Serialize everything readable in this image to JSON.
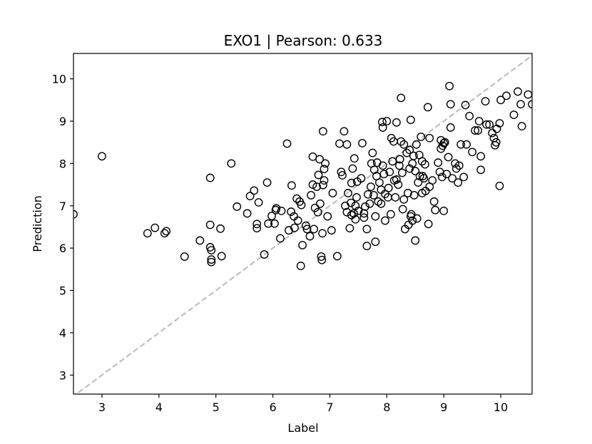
{
  "chart_data": {
    "type": "scatter",
    "title": "EXO1  |  Pearson: 0.633",
    "xlabel": "Label",
    "ylabel": "Prediction",
    "xlim": [
      2.5,
      10.55
    ],
    "ylim": [
      2.55,
      10.6
    ],
    "xticks": [
      3,
      4,
      5,
      6,
      7,
      8,
      9,
      10
    ],
    "yticks": [
      3,
      4,
      5,
      6,
      7,
      8,
      9,
      10
    ],
    "grid": false,
    "legend": "none",
    "marker": "hollow-circle",
    "marker_color": "#000000",
    "reference_line": {
      "style": "dashed",
      "color": "#bfbfbf",
      "slope": 1,
      "intercept": 0
    },
    "points": [
      [
        2.5,
        6.8
      ],
      [
        3.0,
        8.17
      ],
      [
        3.8,
        6.35
      ],
      [
        3.93,
        6.48
      ],
      [
        4.1,
        6.35
      ],
      [
        4.13,
        6.4
      ],
      [
        4.45,
        5.8
      ],
      [
        4.72,
        6.18
      ],
      [
        4.9,
        7.66
      ],
      [
        4.9,
        6.55
      ],
      [
        4.9,
        6.02
      ],
      [
        4.92,
        5.95
      ],
      [
        4.92,
        5.73
      ],
      [
        4.92,
        5.67
      ],
      [
        5.08,
        6.46
      ],
      [
        5.1,
        5.81
      ],
      [
        5.27,
        8.0
      ],
      [
        5.37,
        6.98
      ],
      [
        5.55,
        6.82
      ],
      [
        5.6,
        7.23
      ],
      [
        5.67,
        7.36
      ],
      [
        5.72,
        6.57
      ],
      [
        5.72,
        6.47
      ],
      [
        5.75,
        7.08
      ],
      [
        5.85,
        5.85
      ],
      [
        5.9,
        7.55
      ],
      [
        5.92,
        6.58
      ],
      [
        5.98,
        6.76
      ],
      [
        6.03,
        6.58
      ],
      [
        6.05,
        6.9
      ],
      [
        6.06,
        6.94
      ],
      [
        6.13,
        6.23
      ],
      [
        6.15,
        6.88
      ],
      [
        6.25,
        8.47
      ],
      [
        6.28,
        6.42
      ],
      [
        6.32,
        6.86
      ],
      [
        6.33,
        7.48
      ],
      [
        6.37,
        6.75
      ],
      [
        6.38,
        6.48
      ],
      [
        6.42,
        7.17
      ],
      [
        6.44,
        6.65
      ],
      [
        6.47,
        7.1
      ],
      [
        6.5,
        7.02
      ],
      [
        6.52,
        6.07
      ],
      [
        6.49,
        5.58
      ],
      [
        6.58,
        6.53
      ],
      [
        6.6,
        6.45
      ],
      [
        6.65,
        6.28
      ],
      [
        6.67,
        7.25
      ],
      [
        6.7,
        7.5
      ],
      [
        6.7,
        8.16
      ],
      [
        6.72,
        6.45
      ],
      [
        6.74,
        6.95
      ],
      [
        6.77,
        7.45
      ],
      [
        6.79,
        6.85
      ],
      [
        6.8,
        7.73
      ],
      [
        6.82,
        8.1
      ],
      [
        6.83,
        7.05
      ],
      [
        6.85,
        5.8
      ],
      [
        6.86,
        5.72
      ],
      [
        6.87,
        6.35
      ],
      [
        6.88,
        7.49
      ],
      [
        6.88,
        8.76
      ],
      [
        6.9,
        7.6
      ],
      [
        6.9,
        7.87
      ],
      [
        6.92,
        8.0
      ],
      [
        6.96,
        6.75
      ],
      [
        7.03,
        6.42
      ],
      [
        7.05,
        7.3
      ],
      [
        7.13,
        5.81
      ],
      [
        7.17,
        8.47
      ],
      [
        7.2,
        7.8
      ],
      [
        7.22,
        7.72
      ],
      [
        7.25,
        8.76
      ],
      [
        7.27,
        7.0
      ],
      [
        7.3,
        6.85
      ],
      [
        7.3,
        8.45
      ],
      [
        7.32,
        7.3
      ],
      [
        7.35,
        6.47
      ],
      [
        7.37,
        7.07
      ],
      [
        7.38,
        6.78
      ],
      [
        7.38,
        7.54
      ],
      [
        7.4,
        7.88
      ],
      [
        7.42,
        6.82
      ],
      [
        7.43,
        8.12
      ],
      [
        7.45,
        7.0
      ],
      [
        7.45,
        6.68
      ],
      [
        7.47,
        7.2
      ],
      [
        7.48,
        7.57
      ],
      [
        7.5,
        6.88
      ],
      [
        7.55,
        7.65
      ],
      [
        7.57,
        8.48
      ],
      [
        7.6,
        6.82
      ],
      [
        7.6,
        6.72
      ],
      [
        7.62,
        6.98
      ],
      [
        7.65,
        6.45
      ],
      [
        7.65,
        6.05
      ],
      [
        7.67,
        7.27
      ],
      [
        7.7,
        7.05
      ],
      [
        7.72,
        7.45
      ],
      [
        7.73,
        8.0
      ],
      [
        7.75,
        8.25
      ],
      [
        7.77,
        7.25
      ],
      [
        7.78,
        7.85
      ],
      [
        7.8,
        6.15
      ],
      [
        7.8,
        6.75
      ],
      [
        7.82,
        7.7
      ],
      [
        7.83,
        8.02
      ],
      [
        7.85,
        7.1
      ],
      [
        7.87,
        7.55
      ],
      [
        7.9,
        7.38
      ],
      [
        7.9,
        7.05
      ],
      [
        7.92,
        8.98
      ],
      [
        7.93,
        8.85
      ],
      [
        7.93,
        7.95
      ],
      [
        7.95,
        7.75
      ],
      [
        7.97,
        7.28
      ],
      [
        7.97,
        6.65
      ],
      [
        8.0,
        9.0
      ],
      [
        8.02,
        7.2
      ],
      [
        8.03,
        7.42
      ],
      [
        8.05,
        7.8
      ],
      [
        8.07,
        6.8
      ],
      [
        8.08,
        8.6
      ],
      [
        8.1,
        8.05
      ],
      [
        8.12,
        8.52
      ],
      [
        8.13,
        7.6
      ],
      [
        8.15,
        7.2
      ],
      [
        8.17,
        8.97
      ],
      [
        8.17,
        7.62
      ],
      [
        8.2,
        7.5
      ],
      [
        8.22,
        7.95
      ],
      [
        8.23,
        8.1
      ],
      [
        8.25,
        8.52
      ],
      [
        8.25,
        9.55
      ],
      [
        8.27,
        7.78
      ],
      [
        8.28,
        6.92
      ],
      [
        8.3,
        8.45
      ],
      [
        8.3,
        7.15
      ],
      [
        8.32,
        6.45
      ],
      [
        8.35,
        8.25
      ],
      [
        8.37,
        7.3
      ],
      [
        8.38,
        6.55
      ],
      [
        8.4,
        8.32
      ],
      [
        8.4,
        7.88
      ],
      [
        8.42,
        9.03
      ],
      [
        8.42,
        6.75
      ],
      [
        8.43,
        6.8
      ],
      [
        8.45,
        8.0
      ],
      [
        8.45,
        6.65
      ],
      [
        8.47,
        8.18
      ],
      [
        8.48,
        7.25
      ],
      [
        8.5,
        7.82
      ],
      [
        8.5,
        6.18
      ],
      [
        8.52,
        8.45
      ],
      [
        8.53,
        6.7
      ],
      [
        8.55,
        7.55
      ],
      [
        8.57,
        8.2
      ],
      [
        8.58,
        7.7
      ],
      [
        8.6,
        8.63
      ],
      [
        8.62,
        8.05
      ],
      [
        8.62,
        7.3
      ],
      [
        8.63,
        7.7
      ],
      [
        8.65,
        7.65
      ],
      [
        8.67,
        7.98
      ],
      [
        8.68,
        7.35
      ],
      [
        8.72,
        9.33
      ],
      [
        8.73,
        6.57
      ],
      [
        8.75,
        8.6
      ],
      [
        8.75,
        7.45
      ],
      [
        8.8,
        7.6
      ],
      [
        8.83,
        7.1
      ],
      [
        8.85,
        6.9
      ],
      [
        8.9,
        8.02
      ],
      [
        8.93,
        7.8
      ],
      [
        8.95,
        8.55
      ],
      [
        8.95,
        8.35
      ],
      [
        8.97,
        7.68
      ],
      [
        8.98,
        8.42
      ],
      [
        9.0,
        8.48
      ],
      [
        9.02,
        8.5
      ],
      [
        9.0,
        6.88
      ],
      [
        9.05,
        7.75
      ],
      [
        9.08,
        8.15
      ],
      [
        9.1,
        9.83
      ],
      [
        9.12,
        9.4
      ],
      [
        9.12,
        8.85
      ],
      [
        9.15,
        7.65
      ],
      [
        9.2,
        8.0
      ],
      [
        9.22,
        7.88
      ],
      [
        9.25,
        7.55
      ],
      [
        9.27,
        7.95
      ],
      [
        9.3,
        8.45
      ],
      [
        9.35,
        7.68
      ],
      [
        9.38,
        9.38
      ],
      [
        9.4,
        8.45
      ],
      [
        9.45,
        9.12
      ],
      [
        9.5,
        8.27
      ],
      [
        9.55,
        8.78
      ],
      [
        9.6,
        8.78
      ],
      [
        9.62,
        9.0
      ],
      [
        9.65,
        7.85
      ],
      [
        9.65,
        8.17
      ],
      [
        9.73,
        9.47
      ],
      [
        9.75,
        8.92
      ],
      [
        9.8,
        8.92
      ],
      [
        9.85,
        8.72
      ],
      [
        9.88,
        8.6
      ],
      [
        9.9,
        8.43
      ],
      [
        9.92,
        8.5
      ],
      [
        9.93,
        8.82
      ],
      [
        9.98,
        7.47
      ],
      [
        9.98,
        8.95
      ],
      [
        10.0,
        9.5
      ],
      [
        10.1,
        9.6
      ],
      [
        10.23,
        9.15
      ],
      [
        10.3,
        9.7
      ],
      [
        10.35,
        9.4
      ],
      [
        10.37,
        8.88
      ],
      [
        10.48,
        9.63
      ],
      [
        10.55,
        9.4
      ]
    ]
  }
}
